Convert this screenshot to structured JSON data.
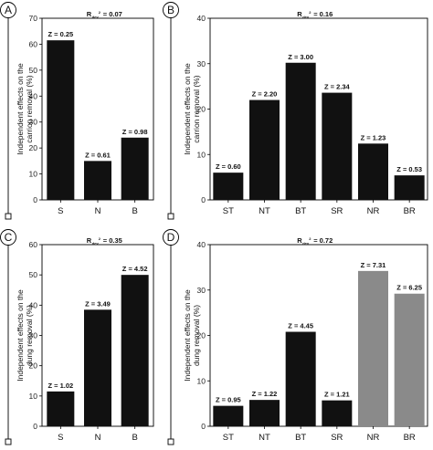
{
  "chart_data": [
    {
      "panel": "A",
      "type": "bar",
      "r2_label": "R",
      "r2_sub": "dev",
      "r2_sup": "2",
      "r2_value": "= 0.07",
      "ylabel": [
        "Independent effects on the",
        "carrion removal (%)"
      ],
      "ylim": [
        0,
        70
      ],
      "yticks": [
        0,
        10,
        20,
        30,
        40,
        50,
        60,
        70
      ],
      "categories": [
        "S",
        "N",
        "B"
      ],
      "values": [
        61.5,
        15,
        24
      ],
      "z_labels": [
        "Z = 0.25",
        "Z = 0.61",
        "Z = 0.98"
      ],
      "bar_colors": [
        "dark",
        "dark",
        "dark"
      ]
    },
    {
      "panel": "B",
      "type": "bar",
      "r2_label": "R",
      "r2_sub": "dev",
      "r2_sup": "2",
      "r2_value": "= 0.16",
      "ylabel": [
        "Independent effects on the",
        "carrion removal (%)"
      ],
      "ylim": [
        0,
        40
      ],
      "yticks": [
        0,
        10,
        20,
        30,
        40
      ],
      "categories": [
        "ST",
        "NT",
        "BT",
        "SR",
        "NR",
        "BR"
      ],
      "values": [
        6,
        22,
        30.2,
        23.6,
        12.4,
        5.4
      ],
      "z_labels": [
        "Z = 0.60",
        "Z = 2.20",
        "Z = 3.00",
        "Z = 2.34",
        "Z = 1.23",
        "Z = 0.53"
      ],
      "bar_colors": [
        "dark",
        "dark",
        "dark",
        "dark",
        "dark",
        "dark"
      ]
    },
    {
      "panel": "C",
      "type": "bar",
      "r2_label": "R",
      "r2_sub": "dev",
      "r2_sup": "2",
      "r2_value": "= 0.35",
      "ylabel": [
        "Independent effects on the",
        "dung removal (%)"
      ],
      "ylim": [
        0,
        60
      ],
      "yticks": [
        0,
        10,
        20,
        30,
        40,
        50,
        60
      ],
      "categories": [
        "S",
        "N",
        "B"
      ],
      "values": [
        11.5,
        38.5,
        50
      ],
      "z_labels": [
        "Z = 1.02",
        "Z = 3.49",
        "Z = 4.52"
      ],
      "bar_colors": [
        "dark",
        "dark",
        "dark"
      ]
    },
    {
      "panel": "D",
      "type": "bar",
      "r2_label": "R",
      "r2_sub": "dev",
      "r2_sup": "2",
      "r2_value": "= 0.72",
      "ylabel": [
        "Independent effects on the",
        "dung removal (%)"
      ],
      "ylim": [
        0,
        40
      ],
      "yticks": [
        0,
        10,
        20,
        30,
        40
      ],
      "categories": [
        "ST",
        "NT",
        "BT",
        "SR",
        "NR",
        "BR"
      ],
      "values": [
        4.5,
        5.8,
        20.8,
        5.7,
        34.2,
        29.2
      ],
      "z_labels": [
        "Z = 0.95",
        "Z = 1.22",
        "Z = 4.45",
        "Z = 1.21",
        "Z = 7.31",
        "Z = 6.25"
      ],
      "bar_colors": [
        "dark",
        "dark",
        "dark",
        "dark",
        "grey",
        "grey"
      ]
    }
  ]
}
